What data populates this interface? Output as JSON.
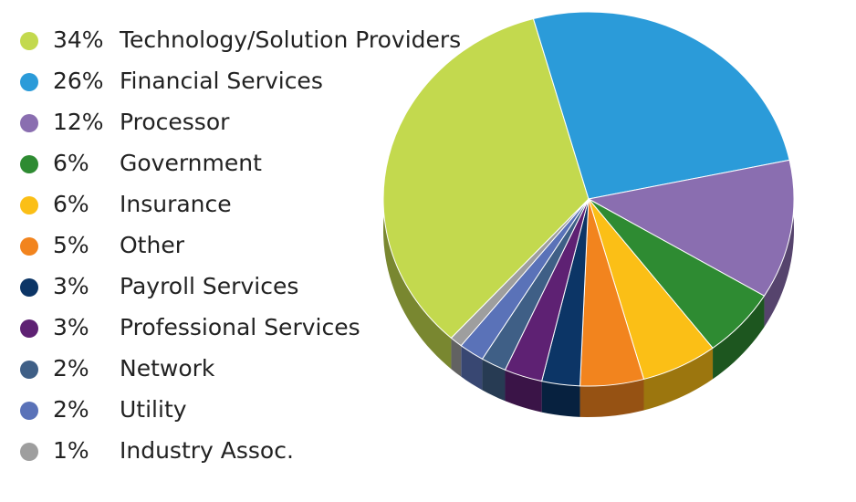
{
  "chart_data": {
    "type": "pie",
    "categories": [
      "Technology/Solution Providers",
      "Financial Services",
      "Processor",
      "Government",
      "Insurance",
      "Other",
      "Payroll Services",
      "Professional Services",
      "Network",
      "Utility",
      "Industry Assoc."
    ],
    "values": [
      34,
      26,
      12,
      6,
      6,
      5,
      3,
      3,
      2,
      2,
      1
    ],
    "value_labels": [
      "34%",
      "26%",
      "12%",
      "6%",
      "6%",
      "5%",
      "3%",
      "3%",
      "2%",
      "2%",
      "1%"
    ],
    "colors": [
      "#c3d94e",
      "#2b9bd9",
      "#8a6eb0",
      "#2e8b32",
      "#fbbf16",
      "#f2841e",
      "#0c3566",
      "#5e2173",
      "#3f5f86",
      "#5a72b8",
      "#9e9e9e"
    ]
  }
}
